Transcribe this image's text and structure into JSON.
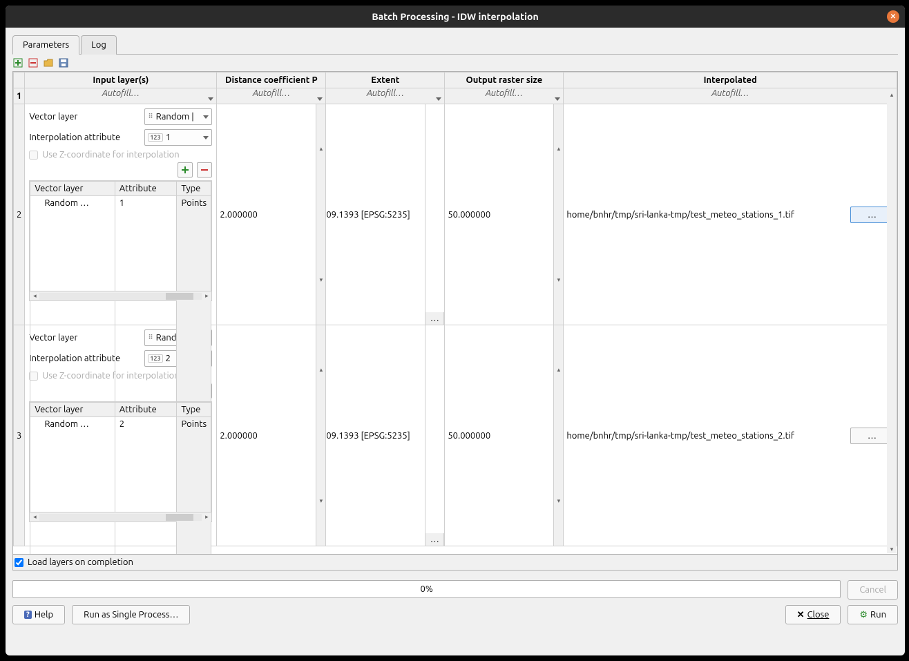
{
  "window": {
    "title": "Batch Processing - IDW interpolation"
  },
  "tabs": {
    "parameters": "Parameters",
    "log": "Log"
  },
  "columns": {
    "input": "Input layer(s)",
    "distance": "Distance coefficient P",
    "extent": "Extent",
    "raster": "Output raster size",
    "interp": "Interpolated"
  },
  "autofill_label": "Autofill…",
  "inner": {
    "vector_layer_label": "Vector layer",
    "interp_attr_label": "Interpolation attribute",
    "use_z_label": "Use Z-coordinate for interpolation",
    "col_vector": "Vector layer",
    "col_attr": "Attribute",
    "col_type": "Type",
    "random_label": "Random |",
    "random_trunc": "Random …",
    "type_points": "Points"
  },
  "rows": [
    {
      "num": "2",
      "attr_value": "1",
      "inner_attr": "1",
      "distance": "2.000000",
      "extent": "09.1393 [EPSG:5235]",
      "extent_btn": "…",
      "raster": "50.000000",
      "interp_path": "home/bnhr/tmp/sri-lanka-tmp/test_meteo_stations_1.tif",
      "interp_selected": true
    },
    {
      "num": "3",
      "attr_value": "2",
      "inner_attr": "2",
      "distance": "2.000000",
      "extent": "09.1393 [EPSG:5235]",
      "extent_btn": "…",
      "raster": "50.000000",
      "interp_path": "home/bnhr/tmp/sri-lanka-tmp/test_meteo_stations_2.tif",
      "interp_selected": false
    }
  ],
  "footer": {
    "load_layers": "Load layers on completion",
    "progress": "0%",
    "cancel": "Cancel",
    "help": "Help",
    "run_single": "Run as Single Process…",
    "close": "Close",
    "run": "Run"
  },
  "ellipsis": "…"
}
